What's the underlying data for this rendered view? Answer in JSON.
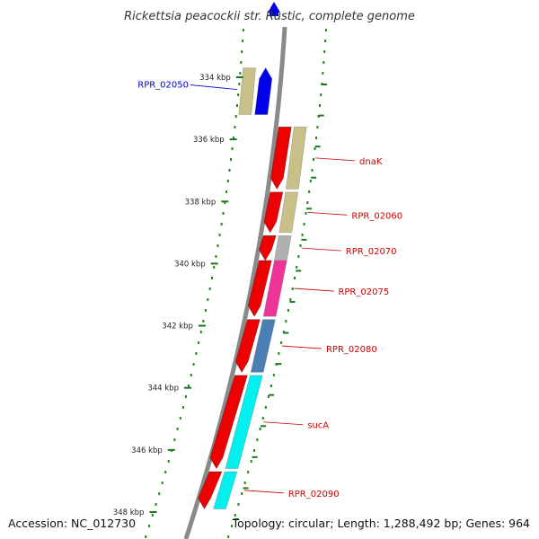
{
  "title": "Rickettsia peacockii str. Rustic, complete genome",
  "footer": {
    "accession": "Accession: NC_012730",
    "summary": "Topology: circular; Length: 1,288,492 bp; Genes: 964"
  },
  "ruler": {
    "unit": "kbp",
    "ticks": [
      {
        "kbp": 334,
        "label": "334 kbp"
      },
      {
        "kbp": 336,
        "label": "336 kbp"
      },
      {
        "kbp": 338,
        "label": "338 kbp"
      },
      {
        "kbp": 340,
        "label": "340 kbp"
      },
      {
        "kbp": 342,
        "label": "342 kbp"
      },
      {
        "kbp": 344,
        "label": "344 kbp"
      },
      {
        "kbp": 346,
        "label": "346 kbp"
      },
      {
        "kbp": 348,
        "label": "348 kbp"
      }
    ]
  },
  "features": [
    {
      "id": "RPR_02050",
      "strand": "+",
      "start_kbp": 333.7,
      "end_kbp": 335.2,
      "color": "#0000ee",
      "cog_color": "#c8c088",
      "label_color": "#0000cc"
    },
    {
      "id": "dnaK",
      "strand": "-",
      "start_kbp": 335.6,
      "end_kbp": 337.6,
      "color": "#ee0000",
      "cog_color": "#c8c088",
      "label_color": "#cc0000"
    },
    {
      "id": "RPR_02060",
      "strand": "-",
      "start_kbp": 337.7,
      "end_kbp": 339.0,
      "color": "#ee0000",
      "cog_color": "#c8c088",
      "label_color": "#cc0000"
    },
    {
      "id": "RPR_02070",
      "strand": "-",
      "start_kbp": 339.1,
      "end_kbp": 339.9,
      "color": "#ee0000",
      "cog_color": "#b0b0b0",
      "label_color": "#cc0000"
    },
    {
      "id": "RPR_02075",
      "strand": "-",
      "start_kbp": 339.9,
      "end_kbp": 341.7,
      "color": "#ee0000",
      "cog_color": "#ee3399",
      "label_color": "#cc0000"
    },
    {
      "id": "RPR_02080",
      "strand": "-",
      "start_kbp": 341.8,
      "end_kbp": 343.5,
      "color": "#ee0000",
      "cog_color": "#4a7fb5",
      "label_color": "#cc0000"
    },
    {
      "id": "sucA",
      "strand": "-",
      "start_kbp": 343.6,
      "end_kbp": 346.6,
      "color": "#ee0000",
      "cog_color": "#00f0f0",
      "label_color": "#cc0000"
    },
    {
      "id": "RPR_02090",
      "strand": "-",
      "start_kbp": 346.7,
      "end_kbp": 347.9,
      "color": "#ee0000",
      "cog_color": "#00f0f0",
      "label_color": "#cc0000"
    }
  ],
  "colors": {
    "backbone": "#8a8a8a",
    "dotted_ring": "#1a8a1a",
    "tick": "#1a7a1a",
    "connector": "#cc0000"
  }
}
